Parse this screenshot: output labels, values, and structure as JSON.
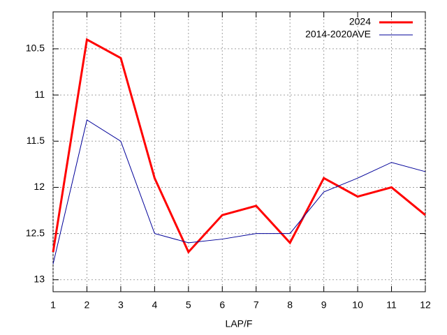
{
  "chart_data": {
    "type": "line",
    "x": [
      1,
      2,
      3,
      4,
      5,
      6,
      7,
      8,
      9,
      10,
      11,
      12
    ],
    "xlim": [
      1,
      12
    ],
    "xticks": [
      1,
      2,
      3,
      4,
      5,
      6,
      7,
      8,
      9,
      10,
      11,
      12
    ],
    "ylim": [
      13.13,
      10.1
    ],
    "yticks": [
      10.5,
      11,
      11.5,
      12,
      12.5,
      13
    ],
    "xlabel": "LAP/F",
    "grid": true,
    "legend": "top-right",
    "series": [
      {
        "name": "2024",
        "color": "#ff0000",
        "values": [
          12.7,
          10.4,
          10.6,
          11.9,
          12.7,
          12.3,
          12.2,
          12.6,
          11.9,
          12.1,
          12.0,
          12.3
        ]
      },
      {
        "name": "2014-2020AVE",
        "color": "#000099",
        "values": [
          12.83,
          11.27,
          11.5,
          12.5,
          12.6,
          12.56,
          12.5,
          12.5,
          12.05,
          11.9,
          11.73,
          11.83
        ]
      }
    ]
  }
}
